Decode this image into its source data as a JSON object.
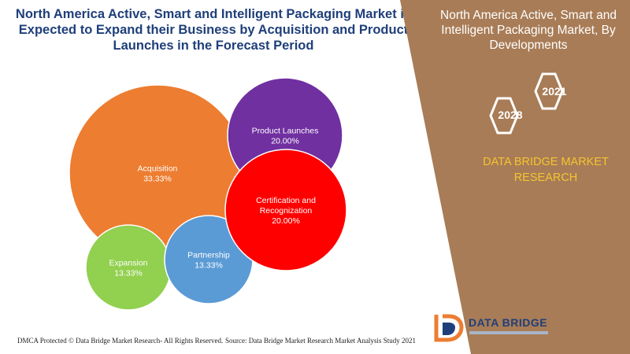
{
  "title": "North America Active, Smart and Intelligent Packaging Market is Expected to Expand their Business by Acquisition and Product Launches in the Forecast Period",
  "side_panel": {
    "title": "North America Active, Smart and Intelligent Packaging Market, By Developments",
    "year_start": "2021",
    "year_end": "2028",
    "brand": "DATA BRIDGE MARKET RESEARCH"
  },
  "logo": {
    "name": "DATA BRIDGE"
  },
  "footer": {
    "left": "DMCA Protected © Data Bridge Market Research- All Rights Reserved.",
    "right": "Source: Data Bridge Market Research Market Analysis Study 2021"
  },
  "colors": {
    "title": "#1f3f7a",
    "panel": "#a87c56",
    "acquisition": "#ed7d31",
    "product_launches": "#7030a0",
    "certification": "#ff0000",
    "partnership": "#5b9bd5",
    "expansion": "#92d050",
    "accent": "#f4c430"
  },
  "chart_data": {
    "type": "bubble",
    "values": [
      {
        "label": "Acquisition",
        "value": 33.33,
        "display": "33.33%"
      },
      {
        "label": "Product Launches",
        "value": 20.0,
        "display": "20.00%"
      },
      {
        "label": "Certification and Recognization",
        "value": 20.0,
        "display": "20.00%"
      },
      {
        "label": "Partnership",
        "value": 13.33,
        "display": "13.33%"
      },
      {
        "label": "Expansion",
        "value": 13.33,
        "display": "13.33%"
      }
    ]
  }
}
